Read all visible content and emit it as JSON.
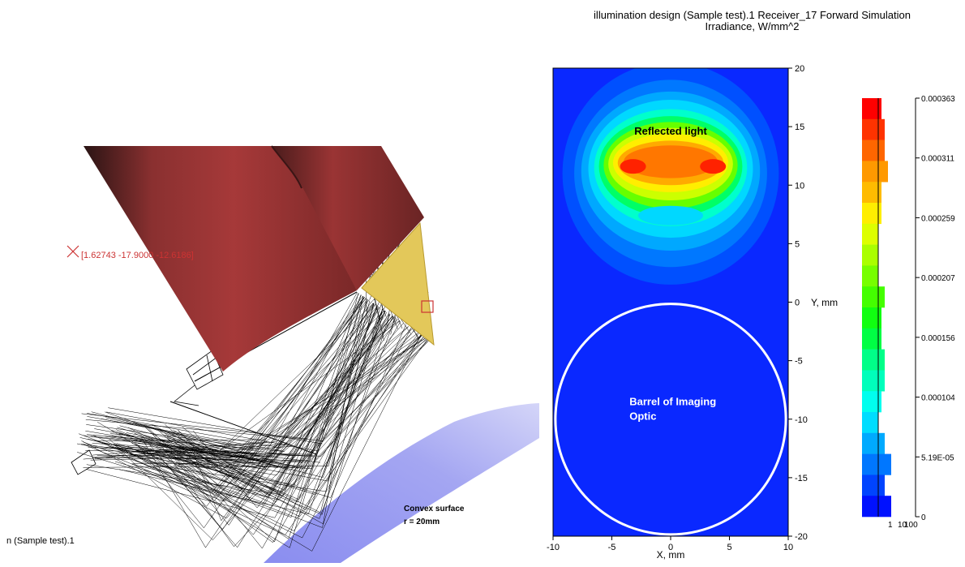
{
  "viewport": {
    "model_label": "n (Sample test).1",
    "coordinate_readout": "[1.62743 -17.9000 -12.6186]",
    "convex_label_line1": "Convex surface",
    "convex_label_line2": "r = 20mm",
    "colors": {
      "barrel": "#a63939",
      "receiver": "#e3c85a",
      "mirror": "#9b9df0",
      "rays": "#000000",
      "marker": "#cc3333"
    }
  },
  "chart_data": {
    "type": "heatmap",
    "title_line1": "illumination design (Sample test).1 Receiver_17 Forward Simulation",
    "title_line2": "Irradiance, W/mm^2",
    "xlabel": "X, mm",
    "ylabel": "Y, mm",
    "xlim": [
      -10,
      10
    ],
    "ylim": [
      -20,
      20
    ],
    "x_ticks": [
      -10,
      -5,
      0,
      5,
      10
    ],
    "y_ticks": [
      20,
      15,
      10,
      5,
      0,
      -5,
      -10,
      -15,
      -20
    ],
    "annotations": [
      {
        "text": "Reflected light",
        "x": 0,
        "y": 14.3
      },
      {
        "text_line1": "Barrel of Imaging",
        "text_line2": "Optic",
        "x": -3.5,
        "y": -8.8
      }
    ],
    "circle": {
      "cx": 0,
      "cy": -10,
      "r": 9.8
    },
    "colorbar": {
      "labels": [
        "0.000363",
        "0.000311",
        "0.000259",
        "0.000207",
        "0.000156",
        "0.000104",
        "5.19E-05",
        "0"
      ],
      "histogram_ticks": [
        "1",
        "10",
        "100"
      ],
      "colors": [
        "#ff0000",
        "#ff3300",
        "#ff6600",
        "#ff9900",
        "#ffbb00",
        "#ffee00",
        "#ddff00",
        "#aaff00",
        "#77ff00",
        "#44ff00",
        "#11ff11",
        "#00ff44",
        "#00ff88",
        "#00ffbb",
        "#00ffee",
        "#00ddff",
        "#00aaff",
        "#0077ff",
        "#0044ff",
        "#0011ff"
      ],
      "histogram": [
        3,
        4,
        4,
        5,
        3,
        3,
        2,
        2,
        2,
        4,
        3,
        3,
        4,
        4,
        3,
        2,
        4,
        6,
        4,
        6
      ]
    }
  }
}
